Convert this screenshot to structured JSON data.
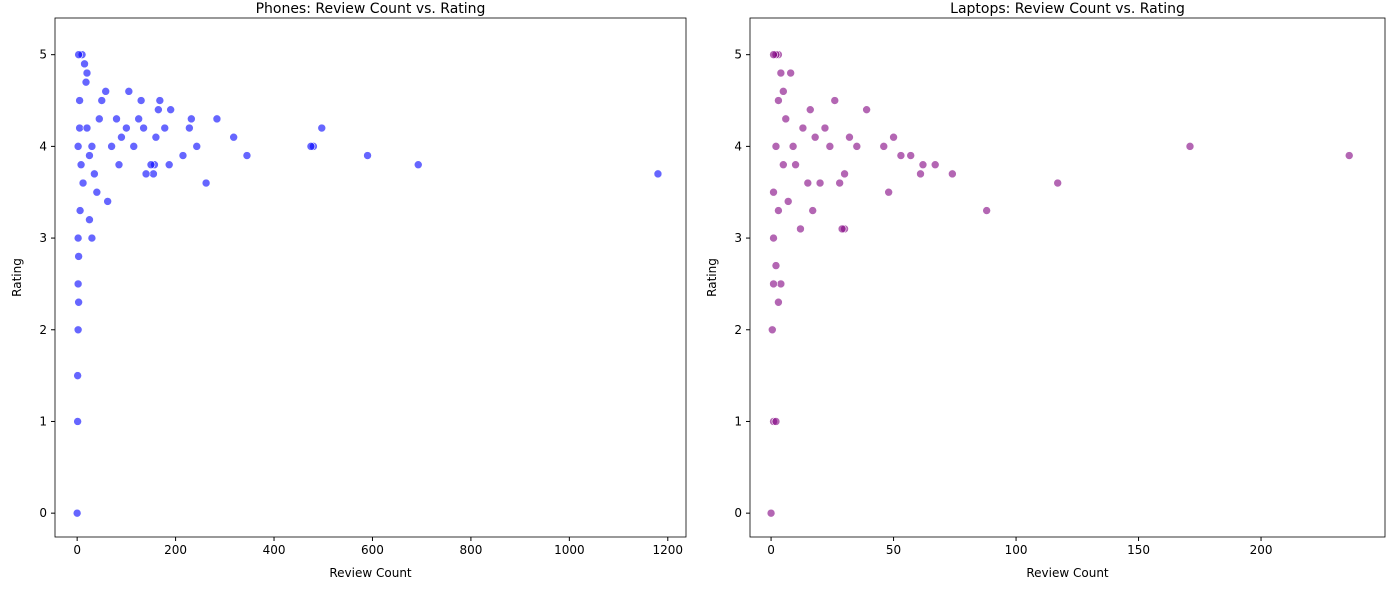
{
  "chart_data": [
    {
      "type": "scatter",
      "title": "Phones: Review Count vs. Rating",
      "x_label": "Review Count",
      "y_label": "Rating",
      "color": "#0000ff",
      "x": [
        1180,
        693,
        590,
        480,
        475,
        497,
        345,
        318,
        284,
        262,
        243,
        232,
        228,
        215,
        190,
        187,
        178,
        168,
        165,
        160,
        157,
        155,
        150,
        140,
        135,
        130,
        125,
        115,
        105,
        100,
        90,
        85,
        80,
        70,
        62,
        58,
        50,
        45,
        40,
        35,
        30,
        25,
        20,
        18,
        15,
        10,
        5,
        3,
        2,
        2,
        3,
        2,
        3,
        2,
        1,
        1,
        0,
        5,
        8,
        12,
        6,
        20,
        25,
        30
      ],
      "y": [
        3.7,
        3.8,
        3.9,
        4.0,
        4.0,
        4.2,
        3.9,
        4.1,
        4.3,
        3.6,
        4.0,
        4.3,
        4.2,
        3.9,
        4.4,
        3.8,
        4.2,
        4.5,
        4.4,
        4.1,
        3.8,
        3.7,
        3.8,
        3.7,
        4.2,
        4.5,
        4.3,
        4.0,
        4.6,
        4.2,
        4.1,
        3.8,
        4.3,
        4.0,
        3.4,
        4.6,
        4.5,
        4.3,
        3.5,
        3.7,
        3.0,
        3.2,
        4.8,
        4.7,
        4.9,
        5.0,
        4.5,
        5.0,
        4.0,
        3.0,
        2.8,
        2.5,
        2.3,
        2.0,
        1.5,
        1.0,
        0.0,
        4.2,
        3.8,
        3.6,
        3.3,
        4.2,
        3.9,
        4.0
      ],
      "xlim": [
        -45,
        1237
      ],
      "ylim": [
        -0.26,
        5.4
      ],
      "xticks": [
        0,
        200,
        400,
        600,
        800,
        1000,
        1200
      ],
      "yticks": [
        0,
        1,
        2,
        3,
        4,
        5
      ]
    },
    {
      "type": "scatter",
      "title": "Laptops: Review Count vs. Rating",
      "x_label": "Review Count",
      "y_label": "Rating",
      "color": "#800080",
      "x": [
        236,
        171,
        117,
        88,
        74,
        67,
        62,
        61,
        57,
        53,
        50,
        48,
        46,
        39,
        35,
        32,
        30,
        29,
        30,
        28,
        26,
        24,
        22,
        20,
        18,
        17,
        16,
        15,
        12,
        13,
        10,
        8,
        7,
        6,
        5,
        4,
        3,
        2,
        1,
        3,
        2,
        1,
        2,
        3,
        4,
        1,
        0.5,
        1,
        2,
        0,
        3,
        1,
        5,
        9
      ],
      "y": [
        3.9,
        4.0,
        3.6,
        3.3,
        3.7,
        3.8,
        3.8,
        3.7,
        3.9,
        3.9,
        4.1,
        3.5,
        4.0,
        4.4,
        4.0,
        4.1,
        3.1,
        3.1,
        3.7,
        3.6,
        4.5,
        4.0,
        4.2,
        3.6,
        4.1,
        3.3,
        4.4,
        3.6,
        3.1,
        4.2,
        3.8,
        4.8,
        3.4,
        4.3,
        4.6,
        4.8,
        5.0,
        5.0,
        5.0,
        4.5,
        4.0,
        3.0,
        2.7,
        2.3,
        2.5,
        2.5,
        2.0,
        1.0,
        1.0,
        0.0,
        3.3,
        3.5,
        3.8,
        4.0
      ],
      "xlim": [
        -8.6,
        250.6
      ],
      "ylim": [
        -0.26,
        5.4
      ],
      "xticks": [
        0,
        50,
        100,
        150,
        200
      ],
      "yticks": [
        0,
        1,
        2,
        3,
        4,
        5
      ]
    }
  ]
}
